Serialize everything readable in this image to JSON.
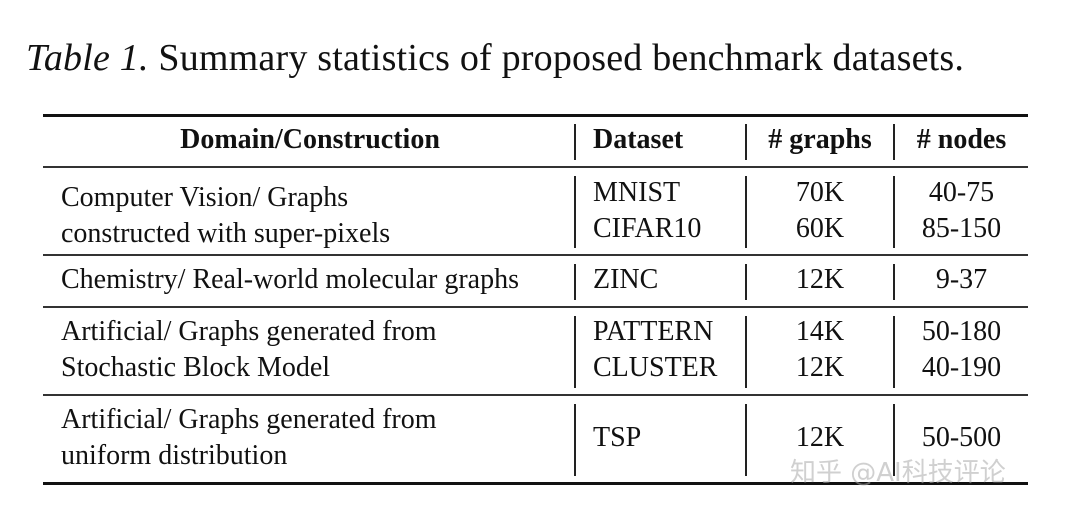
{
  "caption": {
    "label": "Table 1.",
    "text": " Summary statistics of proposed benchmark datasets."
  },
  "headers": {
    "domain": "Domain/Construction",
    "dataset": "Dataset",
    "graphs": "# graphs",
    "nodes": "# nodes"
  },
  "groups": [
    {
      "domain_lines": [
        "Computer Vision/ Graphs",
        "constructed with super-pixels"
      ],
      "rows": [
        {
          "dataset": "MNIST",
          "graphs": "70K",
          "nodes": "40-75"
        },
        {
          "dataset": "CIFAR10",
          "graphs": "60K",
          "nodes": "85-150"
        }
      ]
    },
    {
      "domain_lines": [
        "Chemistry/ Real-world molecular graphs"
      ],
      "rows": [
        {
          "dataset": "ZINC",
          "graphs": "12K",
          "nodes": "9-37"
        }
      ]
    },
    {
      "domain_lines": [
        "Artificial/ Graphs generated from",
        "Stochastic Block Model"
      ],
      "rows": [
        {
          "dataset": "PATTERN",
          "graphs": "14K",
          "nodes": "50-180"
        },
        {
          "dataset": "CLUSTER",
          "graphs": "12K",
          "nodes": "40-190"
        }
      ]
    },
    {
      "domain_lines": [
        "Artificial/ Graphs generated from",
        "uniform distribution"
      ],
      "rows": [
        {
          "dataset": "TSP",
          "graphs": "12K",
          "nodes": "50-500"
        }
      ]
    }
  ],
  "watermark": "知乎 @AI科技评论"
}
